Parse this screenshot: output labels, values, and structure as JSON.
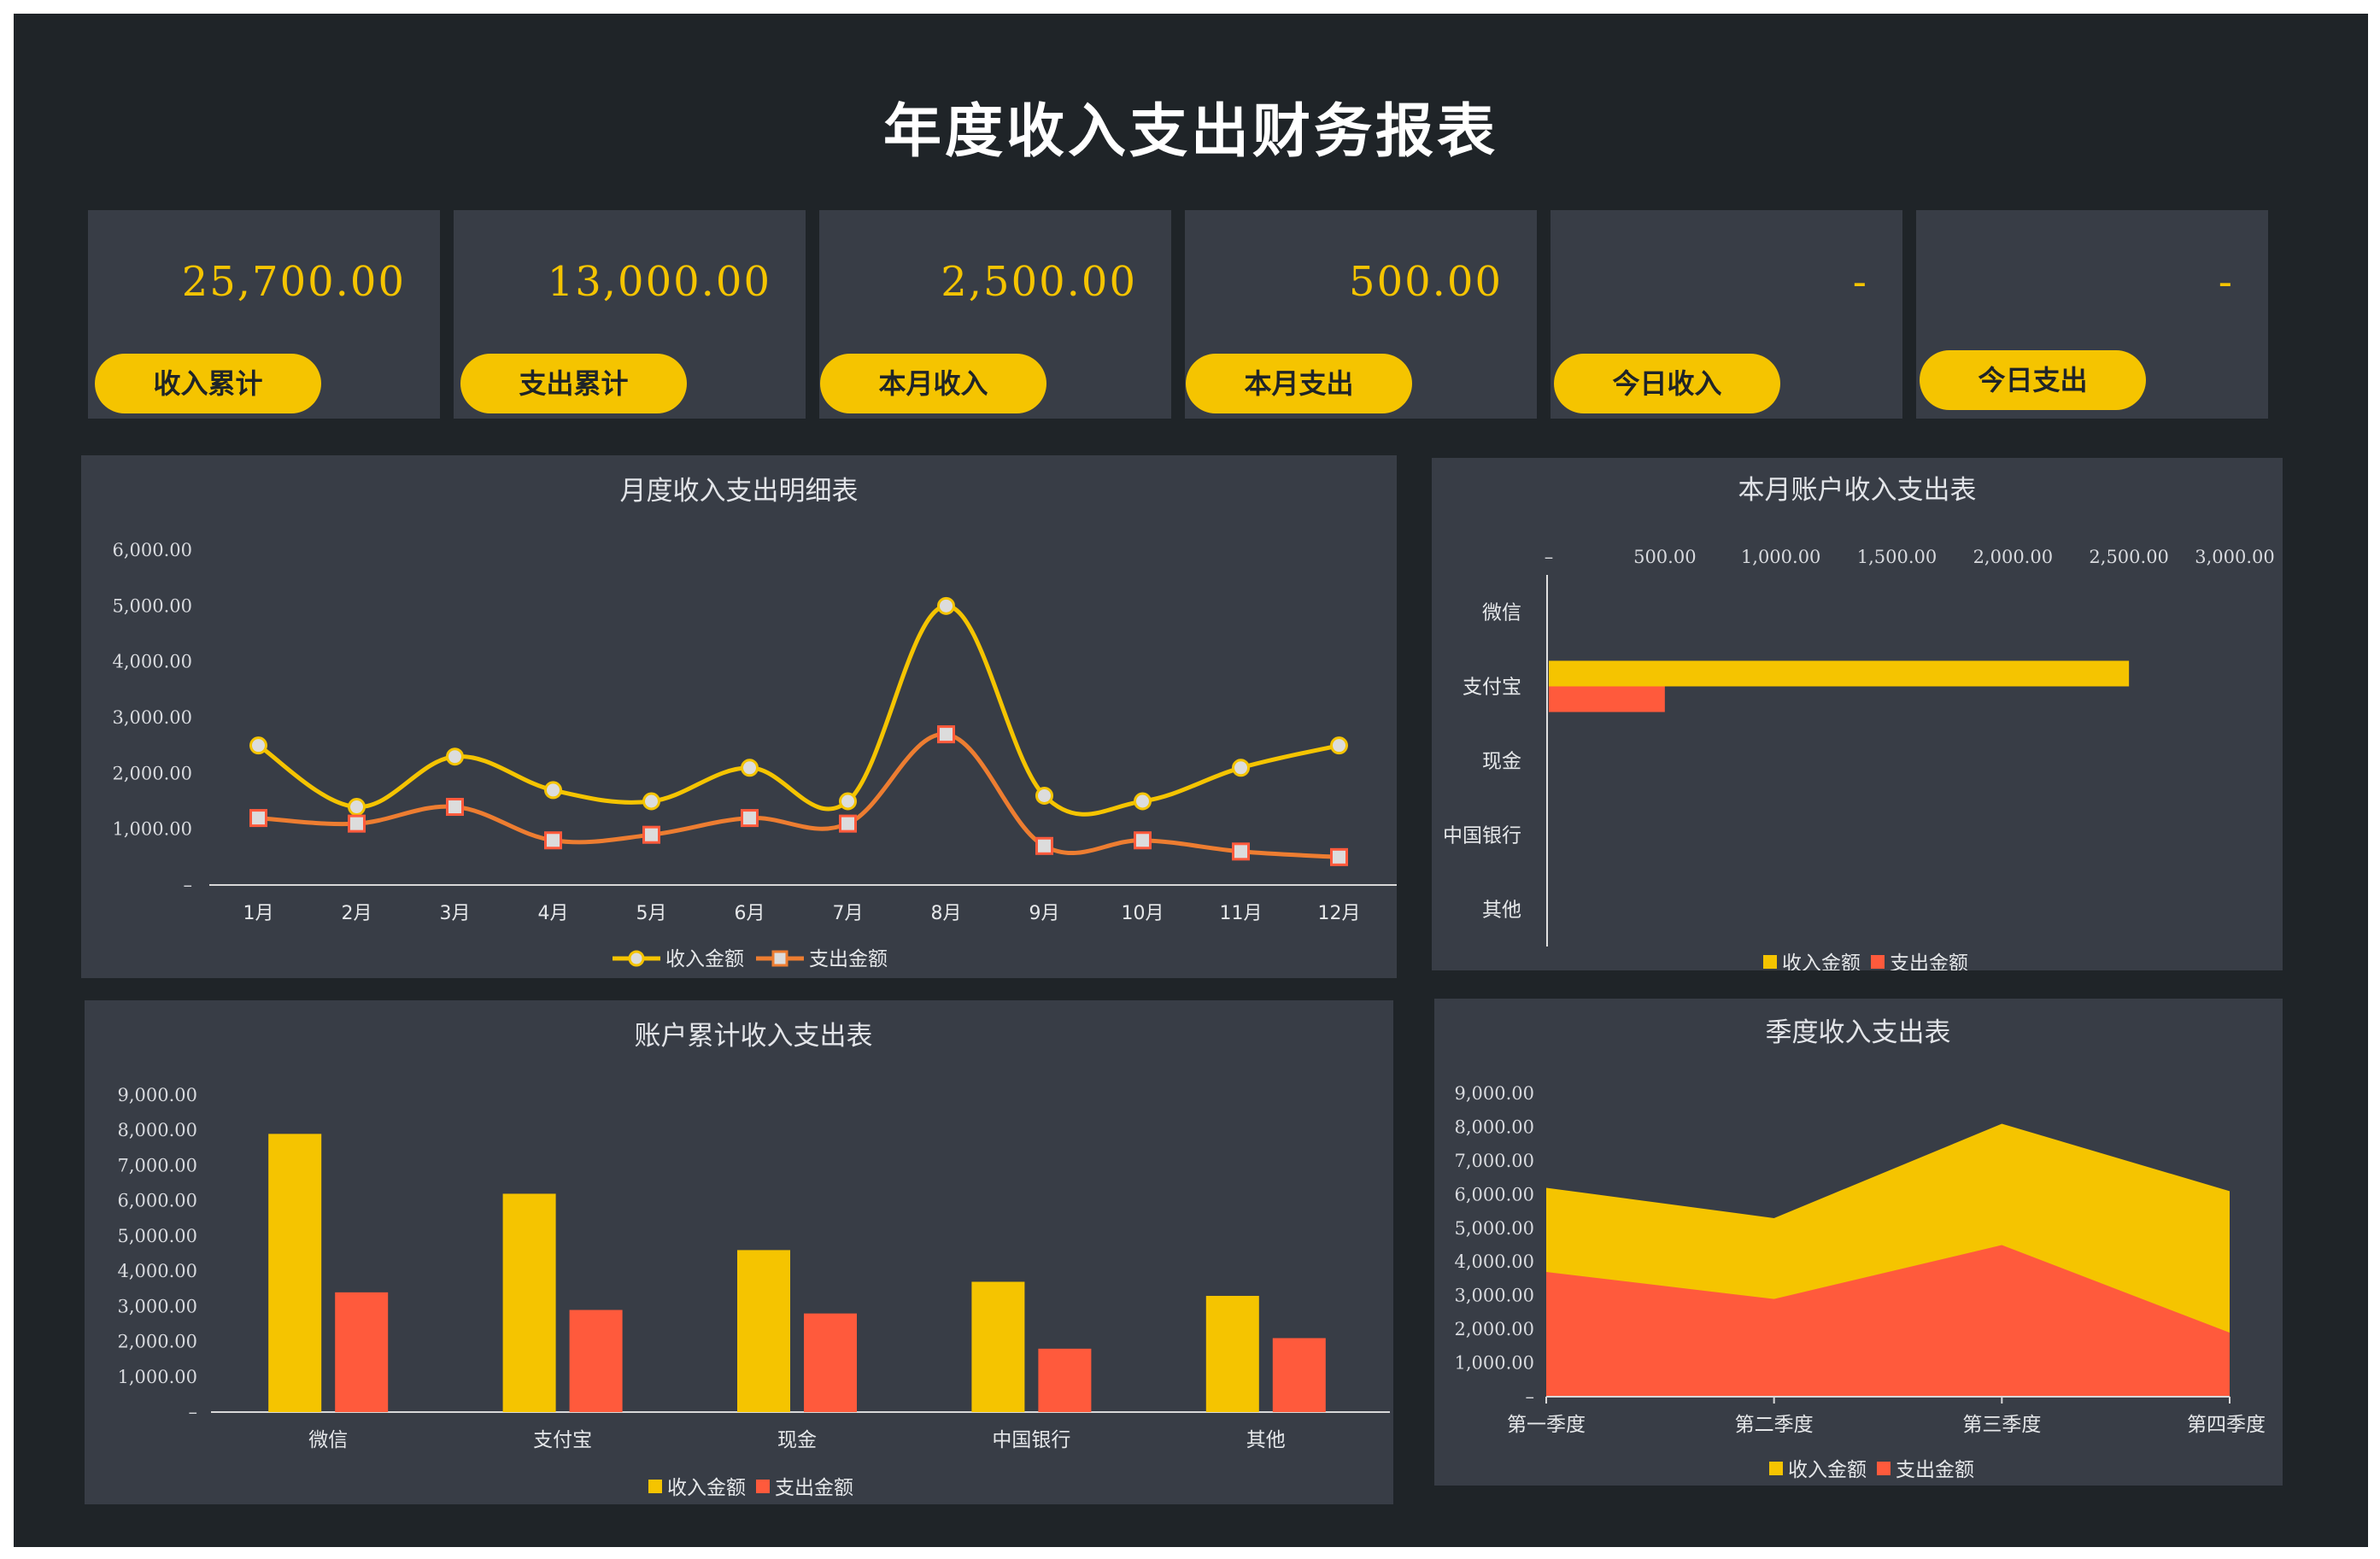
{
  "title": "年度收入支出财务报表",
  "colors": {
    "income": "#f5c400",
    "expense": "#ff5a3c",
    "expense_line": "#ed7d31",
    "panel": "#383d46",
    "background": "#1f2428"
  },
  "cards": [
    {
      "value": "25,700.00",
      "label": "收入累计"
    },
    {
      "value": "13,000.00",
      "label": "支出累计"
    },
    {
      "value": "2,500.00",
      "label": "本月收入"
    },
    {
      "value": "500.00",
      "label": "本月支出"
    },
    {
      "value": "-",
      "label": "今日收入"
    },
    {
      "value": "-",
      "label": "今日支出"
    }
  ],
  "chart_data": [
    {
      "id": "monthly",
      "type": "line",
      "title": "月度收入支出明细表",
      "categories": [
        "1月",
        "2月",
        "3月",
        "4月",
        "5月",
        "6月",
        "7月",
        "8月",
        "9月",
        "10月",
        "11月",
        "12月"
      ],
      "series": [
        {
          "name": "收入金额",
          "values": [
            2500,
            1400,
            2300,
            1700,
            1500,
            2100,
            1500,
            5000,
            1600,
            1500,
            2100,
            2500
          ]
        },
        {
          "name": "支出金额",
          "values": [
            1200,
            1100,
            1400,
            800,
            900,
            1200,
            1100,
            2700,
            700,
            800,
            600,
            500
          ]
        }
      ],
      "ylim": [
        0,
        6000
      ],
      "yticks": [
        "–",
        "1,000.00",
        "2,000.00",
        "3,000.00",
        "4,000.00",
        "5,000.00",
        "6,000.00"
      ],
      "legend": "bottom",
      "grid": false
    },
    {
      "id": "account_month",
      "type": "bar",
      "orientation": "horizontal",
      "title": "本月账户收入支出表",
      "categories": [
        "微信",
        "支付宝",
        "现金",
        "中国银行",
        "其他"
      ],
      "series": [
        {
          "name": "收入金额",
          "values": [
            0,
            2500,
            0,
            0,
            0
          ]
        },
        {
          "name": "支出金额",
          "values": [
            0,
            500,
            0,
            0,
            0
          ]
        }
      ],
      "xlim": [
        0,
        3000
      ],
      "xticks": [
        "–",
        "500.00",
        "1,000.00",
        "1,500.00",
        "2,000.00",
        "2,500.00",
        "3,000.00"
      ],
      "legend": "bottom",
      "grid": false
    },
    {
      "id": "account_total",
      "type": "bar",
      "title": "账户累计收入支出表",
      "categories": [
        "微信",
        "支付宝",
        "现金",
        "中国银行",
        "其他"
      ],
      "series": [
        {
          "name": "收入金额",
          "values": [
            7900,
            6200,
            4600,
            3700,
            3300
          ]
        },
        {
          "name": "支出金额",
          "values": [
            3400,
            2900,
            2800,
            1800,
            2100
          ]
        }
      ],
      "ylim": [
        0,
        9000
      ],
      "yticks": [
        "–",
        "1,000.00",
        "2,000.00",
        "3,000.00",
        "4,000.00",
        "5,000.00",
        "6,000.00",
        "7,000.00",
        "8,000.00",
        "9,000.00"
      ],
      "legend": "bottom",
      "grid": false
    },
    {
      "id": "quarterly",
      "type": "area",
      "title": "季度收入支出表",
      "categories": [
        "第一季度",
        "第二季度",
        "第三季度",
        "第四季度"
      ],
      "series": [
        {
          "name": "收入金额",
          "values": [
            6200,
            5300,
            8100,
            6100
          ]
        },
        {
          "name": "支出金额",
          "values": [
            3700,
            2900,
            4500,
            1900
          ]
        }
      ],
      "ylim": [
        0,
        9000
      ],
      "yticks": [
        "–",
        "1,000.00",
        "2,000.00",
        "3,000.00",
        "4,000.00",
        "5,000.00",
        "6,000.00",
        "7,000.00",
        "8,000.00",
        "9,000.00"
      ],
      "legend": "bottom",
      "grid": false
    }
  ]
}
